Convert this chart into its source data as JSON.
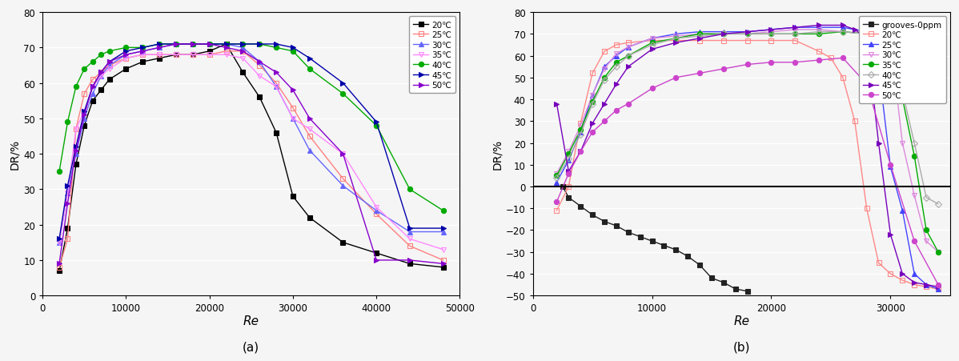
{
  "panel_a": {
    "title": "(a)",
    "xlabel": "Re",
    "ylabel": "DR/%",
    "xlim": [
      0,
      50000
    ],
    "ylim": [
      0,
      80
    ],
    "xticks": [
      0,
      10000,
      20000,
      30000,
      40000,
      50000
    ],
    "yticks": [
      0,
      10,
      20,
      30,
      40,
      50,
      60,
      70,
      80
    ],
    "series": [
      {
        "label": "20℃",
        "color": "#000000",
        "marker": "s",
        "fillstyle": "full",
        "linestyle": "-",
        "re": [
          2000,
          3000,
          4000,
          5000,
          6000,
          7000,
          8000,
          10000,
          12000,
          14000,
          16000,
          18000,
          20000,
          22000,
          24000,
          26000,
          28000,
          30000,
          32000,
          36000,
          40000,
          44000,
          48000
        ],
        "dr": [
          7,
          19,
          37,
          48,
          55,
          58,
          61,
          64,
          66,
          67,
          68,
          68,
          69,
          71,
          63,
          56,
          46,
          28,
          22,
          15,
          12,
          9,
          8
        ]
      },
      {
        "label": "25℃",
        "color": "#ff8080",
        "marker": "s",
        "fillstyle": "none",
        "linestyle": "-",
        "re": [
          2000,
          3000,
          4000,
          5000,
          6000,
          7000,
          8000,
          10000,
          12000,
          14000,
          16000,
          18000,
          20000,
          22000,
          24000,
          26000,
          28000,
          30000,
          32000,
          36000,
          40000,
          44000,
          48000
        ],
        "dr": [
          8,
          16,
          47,
          57,
          61,
          63,
          65,
          67,
          68,
          68,
          68,
          68,
          68,
          69,
          69,
          65,
          60,
          53,
          45,
          33,
          23,
          14,
          10
        ]
      },
      {
        "label": "30℃",
        "color": "#6666ff",
        "marker": "^",
        "fillstyle": "full",
        "linestyle": "-",
        "re": [
          2000,
          3000,
          4000,
          5000,
          6000,
          7000,
          8000,
          10000,
          12000,
          14000,
          16000,
          18000,
          20000,
          22000,
          24000,
          26000,
          28000,
          30000,
          32000,
          36000,
          40000,
          44000,
          48000
        ],
        "dr": [
          15,
          29,
          40,
          50,
          57,
          62,
          65,
          68,
          69,
          70,
          71,
          71,
          71,
          71,
          70,
          66,
          59,
          50,
          41,
          31,
          24,
          18,
          18
        ]
      },
      {
        "label": "35℃",
        "color": "#ff88ff",
        "marker": "v",
        "fillstyle": "none",
        "linestyle": "-",
        "re": [
          2000,
          3000,
          4000,
          5000,
          6000,
          7000,
          8000,
          10000,
          12000,
          14000,
          16000,
          18000,
          20000,
          22000,
          24000,
          26000,
          28000,
          30000,
          32000,
          36000,
          40000,
          44000,
          48000
        ],
        "dr": [
          15,
          29,
          47,
          52,
          59,
          62,
          64,
          67,
          68,
          68,
          68,
          68,
          68,
          68,
          67,
          62,
          59,
          50,
          47,
          40,
          25,
          16,
          13
        ]
      },
      {
        "label": "40℃",
        "color": "#00aa00",
        "marker": "o",
        "fillstyle": "full",
        "linestyle": "-",
        "re": [
          2000,
          3000,
          4000,
          5000,
          6000,
          7000,
          8000,
          10000,
          12000,
          14000,
          16000,
          18000,
          20000,
          22000,
          24000,
          26000,
          28000,
          30000,
          32000,
          36000,
          40000,
          44000,
          48000
        ],
        "dr": [
          35,
          49,
          59,
          64,
          66,
          68,
          69,
          70,
          70,
          71,
          71,
          71,
          71,
          71,
          71,
          71,
          70,
          69,
          64,
          57,
          48,
          30,
          24
        ]
      },
      {
        "label": "45℃",
        "color": "#0000aa",
        "marker": ">",
        "fillstyle": "full",
        "linestyle": "-",
        "re": [
          2000,
          3000,
          4000,
          5000,
          6000,
          7000,
          8000,
          10000,
          12000,
          14000,
          16000,
          18000,
          20000,
          22000,
          24000,
          26000,
          28000,
          30000,
          32000,
          36000,
          40000,
          44000,
          48000
        ],
        "dr": [
          16,
          31,
          42,
          52,
          59,
          63,
          66,
          69,
          70,
          71,
          71,
          71,
          71,
          71,
          71,
          71,
          71,
          70,
          67,
          60,
          49,
          19,
          19
        ]
      },
      {
        "label": "50℃",
        "color": "#8800cc",
        "marker": ">",
        "fillstyle": "full",
        "linestyle": "-",
        "re": [
          2000,
          3000,
          4000,
          5000,
          6000,
          7000,
          8000,
          10000,
          12000,
          14000,
          16000,
          18000,
          20000,
          22000,
          24000,
          26000,
          28000,
          30000,
          32000,
          36000,
          40000,
          44000,
          48000
        ],
        "dr": [
          9,
          26,
          41,
          51,
          59,
          63,
          66,
          68,
          69,
          70,
          71,
          71,
          71,
          70,
          69,
          66,
          63,
          58,
          50,
          40,
          10,
          10,
          9
        ]
      }
    ]
  },
  "panel_b": {
    "title": "(b)",
    "xlabel": "Re",
    "ylabel": "DR/%",
    "xlim": [
      0,
      35000
    ],
    "ylim": [
      -50,
      80
    ],
    "xticks": [
      0,
      10000,
      20000,
      30000
    ],
    "yticks": [
      -50,
      -40,
      -30,
      -20,
      -10,
      0,
      10,
      20,
      30,
      40,
      50,
      60,
      70,
      80
    ],
    "hline_y": 0,
    "series": [
      {
        "label": "grooves-0ppm",
        "color": "#222222",
        "marker": "s",
        "fillstyle": "full",
        "linestyle": "-",
        "re": [
          2500,
          3000,
          4000,
          5000,
          6000,
          7000,
          8000,
          9000,
          10000,
          11000,
          12000,
          13000,
          14000,
          15000,
          16000,
          17000,
          18000
        ],
        "dr": [
          0,
          -5,
          -9,
          -13,
          -16,
          -18,
          -21,
          -23,
          -25,
          -27,
          -29,
          -32,
          -36,
          -42,
          -44,
          -47,
          -48
        ]
      },
      {
        "label": "20℃",
        "color": "#ff8888",
        "marker": "s",
        "fillstyle": "none",
        "linestyle": "-",
        "re": [
          2000,
          3000,
          4000,
          5000,
          6000,
          7000,
          8000,
          10000,
          12000,
          14000,
          16000,
          18000,
          20000,
          22000,
          24000,
          25000,
          26000,
          27000,
          28000,
          29000,
          30000,
          31000,
          32000,
          33000,
          34000
        ],
        "dr": [
          -11,
          0,
          29,
          52,
          62,
          65,
          66,
          67,
          67,
          67,
          67,
          67,
          67,
          67,
          62,
          59,
          50,
          30,
          -10,
          -35,
          -40,
          -43,
          -45,
          -46,
          -47
        ]
      },
      {
        "label": "25℃",
        "color": "#4444ff",
        "marker": "^",
        "fillstyle": "full",
        "linestyle": "-",
        "re": [
          2000,
          3000,
          4000,
          5000,
          6000,
          7000,
          8000,
          10000,
          12000,
          14000,
          16000,
          18000,
          20000,
          22000,
          24000,
          26000,
          28000,
          29000,
          30000,
          31000,
          32000,
          33000,
          34000
        ],
        "dr": [
          2,
          12,
          25,
          42,
          55,
          60,
          64,
          68,
          70,
          71,
          71,
          71,
          72,
          73,
          73,
          73,
          71,
          55,
          9,
          -11,
          -40,
          -45,
          -47
        ]
      },
      {
        "label": "30℃",
        "color": "#dd88dd",
        "marker": "v",
        "fillstyle": "none",
        "linestyle": "-",
        "re": [
          2000,
          3000,
          4000,
          5000,
          6000,
          7000,
          8000,
          10000,
          12000,
          14000,
          16000,
          18000,
          20000,
          22000,
          24000,
          26000,
          28000,
          30000,
          31000,
          32000,
          33000,
          34000
        ],
        "dr": [
          6,
          16,
          28,
          42,
          54,
          61,
          64,
          68,
          69,
          70,
          70,
          70,
          71,
          72,
          72,
          71,
          70,
          67,
          20,
          -4,
          -25,
          -30
        ]
      },
      {
        "label": "35℃",
        "color": "#00aa00",
        "marker": "o",
        "fillstyle": "full",
        "linestyle": "-",
        "re": [
          2000,
          3000,
          4000,
          5000,
          6000,
          7000,
          8000,
          10000,
          12000,
          14000,
          16000,
          18000,
          20000,
          22000,
          24000,
          26000,
          28000,
          30000,
          32000,
          33000,
          34000
        ],
        "dr": [
          5,
          15,
          26,
          39,
          50,
          57,
          60,
          66,
          68,
          70,
          70,
          70,
          70,
          70,
          70,
          71,
          70,
          67,
          14,
          -20,
          -30
        ]
      },
      {
        "label": "40℃",
        "color": "#aaaaaa",
        "marker": "D",
        "fillstyle": "none",
        "linestyle": "-",
        "re": [
          2000,
          3000,
          4000,
          5000,
          6000,
          7000,
          8000,
          10000,
          12000,
          14000,
          16000,
          18000,
          20000,
          22000,
          24000,
          26000,
          28000,
          30000,
          32000,
          33000,
          34000
        ],
        "dr": [
          4,
          13,
          24,
          38,
          49,
          55,
          60,
          65,
          68,
          69,
          70,
          70,
          70,
          70,
          71,
          71,
          70,
          67,
          20,
          -5,
          -8
        ]
      },
      {
        "label": "45℃",
        "color": "#7700bb",
        "marker": ">",
        "fillstyle": "full",
        "linestyle": "-",
        "re": [
          2000,
          3000,
          4000,
          5000,
          6000,
          7000,
          8000,
          10000,
          12000,
          14000,
          16000,
          18000,
          20000,
          22000,
          24000,
          26000,
          27000,
          28000,
          29000,
          30000,
          31000,
          32000,
          33000,
          34000
        ],
        "dr": [
          38,
          7,
          16,
          29,
          38,
          47,
          55,
          63,
          66,
          68,
          70,
          71,
          72,
          73,
          74,
          74,
          72,
          68,
          20,
          -22,
          -40,
          -44,
          -45,
          -46
        ]
      },
      {
        "label": "50℃",
        "color": "#cc44cc",
        "marker": "o",
        "fillstyle": "full",
        "linestyle": "-",
        "re": [
          2000,
          3000,
          4000,
          5000,
          6000,
          7000,
          8000,
          10000,
          12000,
          14000,
          16000,
          18000,
          20000,
          22000,
          24000,
          26000,
          28000,
          30000,
          32000,
          34000
        ],
        "dr": [
          -7,
          6,
          16,
          25,
          30,
          35,
          38,
          45,
          50,
          52,
          54,
          56,
          57,
          57,
          58,
          59,
          47,
          10,
          -25,
          -45
        ]
      }
    ]
  },
  "bg_color": "#f5f5f5",
  "plot_bg_color": "#f5f5f5"
}
